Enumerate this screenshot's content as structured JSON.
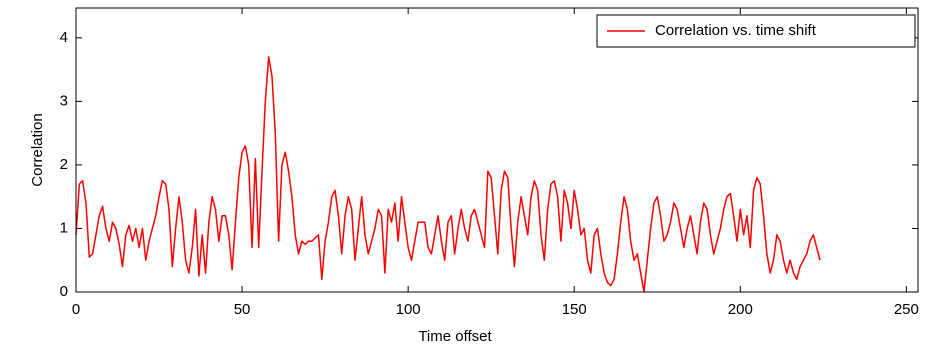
{
  "chart_data": {
    "type": "line",
    "xlabel": "Time offset",
    "ylabel": "Correlation",
    "xlim": [
      0,
      253.5
    ],
    "ylim": [
      0,
      4.47
    ],
    "xticks": [
      0,
      50,
      100,
      150,
      200,
      250
    ],
    "yticks": [
      0,
      1,
      2,
      3,
      4
    ],
    "legend": "upper right",
    "x": [
      0,
      1,
      2,
      3,
      4,
      5,
      6,
      7,
      8,
      9,
      10,
      11,
      12,
      13,
      14,
      15,
      16,
      17,
      18,
      19,
      20,
      21,
      22,
      23,
      24,
      25,
      26,
      27,
      28,
      29,
      30,
      31,
      32,
      33,
      34,
      35,
      36,
      37,
      38,
      39,
      40,
      41,
      42,
      43,
      44,
      45,
      46,
      47,
      48,
      49,
      50,
      51,
      52,
      53,
      54,
      55,
      56,
      57,
      58,
      59,
      60,
      61,
      62,
      63,
      64,
      65,
      66,
      67,
      68,
      69,
      70,
      71,
      72,
      73,
      74,
      75,
      76,
      77,
      78,
      79,
      80,
      81,
      82,
      83,
      84,
      85,
      86,
      87,
      88,
      89,
      90,
      91,
      92,
      93,
      94,
      95,
      96,
      97,
      98,
      99,
      100,
      101,
      102,
      103,
      104,
      105,
      106,
      107,
      108,
      109,
      110,
      111,
      112,
      113,
      114,
      115,
      116,
      117,
      118,
      119,
      120,
      121,
      122,
      123,
      124,
      125,
      126,
      127,
      128,
      129,
      130,
      131,
      132,
      133,
      134,
      135,
      136,
      137,
      138,
      139,
      140,
      141,
      142,
      143,
      144,
      145,
      146,
      147,
      148,
      149,
      150,
      151,
      152,
      153,
      154,
      155,
      156,
      157,
      158,
      159,
      160,
      161,
      162,
      163,
      164,
      165,
      166,
      167,
      168,
      169,
      170,
      171,
      172,
      173,
      174,
      175,
      176,
      177,
      178,
      179,
      180,
      181,
      182,
      183,
      184,
      185,
      186,
      187,
      188,
      189,
      190,
      191,
      192,
      193,
      194,
      195,
      196,
      197,
      198,
      199,
      200,
      201,
      202,
      203,
      204,
      205,
      206,
      207,
      208,
      209,
      210,
      211,
      212,
      213,
      214,
      215,
      216,
      217,
      218,
      219,
      220,
      221,
      222,
      223,
      224
    ],
    "series": [
      {
        "name": "Correlation vs. time shift",
        "color": "#ff0000",
        "values": [
          0.9,
          1.7,
          1.75,
          1.4,
          0.55,
          0.6,
          0.9,
          1.2,
          1.35,
          1.0,
          0.8,
          1.1,
          1.0,
          0.75,
          0.4,
          0.9,
          1.05,
          0.8,
          1.0,
          0.7,
          1.0,
          0.5,
          0.8,
          1.0,
          1.2,
          1.5,
          1.75,
          1.7,
          1.3,
          0.4,
          1.0,
          1.5,
          1.1,
          0.5,
          0.3,
          0.7,
          1.3,
          0.25,
          0.9,
          0.3,
          1.1,
          1.5,
          1.3,
          0.8,
          1.2,
          1.2,
          0.9,
          0.35,
          1.1,
          1.8,
          2.2,
          2.3,
          2.0,
          0.7,
          2.1,
          0.7,
          1.9,
          3.0,
          3.7,
          3.4,
          2.5,
          0.8,
          2.0,
          2.2,
          1.9,
          1.5,
          0.9,
          0.6,
          0.8,
          0.75,
          0.8,
          0.8,
          0.85,
          0.9,
          0.2,
          0.8,
          1.1,
          1.5,
          1.6,
          1.2,
          0.6,
          1.2,
          1.5,
          1.3,
          0.5,
          1.0,
          1.5,
          0.9,
          0.6,
          0.8,
          1.0,
          1.3,
          1.2,
          0.3,
          1.3,
          1.1,
          1.4,
          0.8,
          1.5,
          1.1,
          0.7,
          0.5,
          0.8,
          1.1,
          1.1,
          1.1,
          0.7,
          0.6,
          0.9,
          1.2,
          0.8,
          0.5,
          1.1,
          1.2,
          0.6,
          1.0,
          1.3,
          1.0,
          0.8,
          1.2,
          1.3,
          1.1,
          0.9,
          0.7,
          1.9,
          1.8,
          1.2,
          0.6,
          1.6,
          1.9,
          1.8,
          1.0,
          0.4,
          1.1,
          1.5,
          1.2,
          0.9,
          1.5,
          1.75,
          1.6,
          0.9,
          0.5,
          1.3,
          1.7,
          1.75,
          1.5,
          0.8,
          1.6,
          1.4,
          1.0,
          1.6,
          1.3,
          0.9,
          1.0,
          0.5,
          0.3,
          0.9,
          1.0,
          0.6,
          0.3,
          0.15,
          0.1,
          0.2,
          0.6,
          1.1,
          1.5,
          1.3,
          0.8,
          0.5,
          0.6,
          0.3,
          0.0,
          0.5,
          1.0,
          1.4,
          1.5,
          1.2,
          0.8,
          0.9,
          1.1,
          1.4,
          1.3,
          1.0,
          0.7,
          1.0,
          1.2,
          0.9,
          0.6,
          1.1,
          1.4,
          1.3,
          0.9,
          0.6,
          0.8,
          1.0,
          1.3,
          1.5,
          1.55,
          1.2,
          0.8,
          1.3,
          0.9,
          1.2,
          0.7,
          1.6,
          1.8,
          1.7,
          1.2,
          0.6,
          0.3,
          0.5,
          0.9,
          0.8,
          0.5,
          0.3,
          0.5,
          0.3,
          0.2,
          0.4,
          0.5,
          0.6,
          0.8,
          0.9,
          0.7,
          0.5
        ]
      }
    ]
  }
}
